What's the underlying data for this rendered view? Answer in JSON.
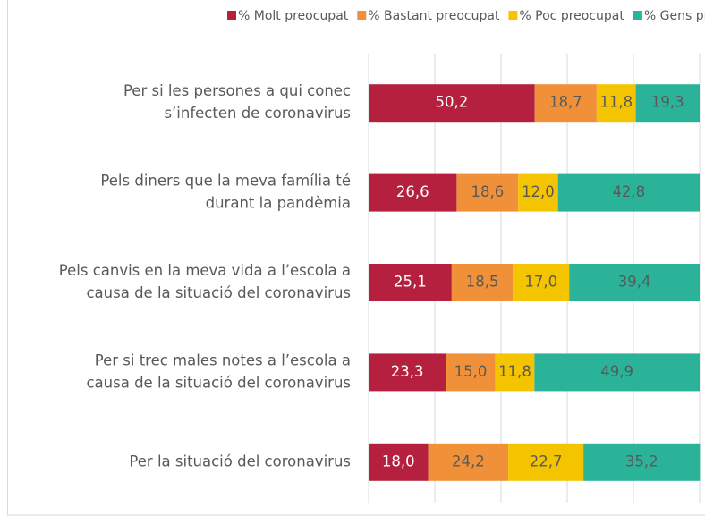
{
  "chart_data": {
    "type": "stacked-barh",
    "categories": [
      [
        "Per si les persones a qui conec",
        "s’infecten de coronavirus"
      ],
      [
        "Pels diners que la meva família té",
        "durant la pandèmia"
      ],
      [
        "Pels canvis en la meva vida a l’escola a",
        "causa de la situació del coronavirus"
      ],
      [
        "Per si trec males notes a l’escola a",
        "causa de la situació del coronavirus"
      ],
      [
        "Per la situació del coronavirus"
      ]
    ],
    "series": [
      {
        "name": "% Molt preocupat",
        "color": "#b5203f",
        "label_color": "#ffffff",
        "values": [
          50.2,
          26.6,
          25.1,
          23.3,
          18.0
        ],
        "value_labels": [
          "50,2",
          "26,6",
          "25,1",
          "23,3",
          "18,0"
        ]
      },
      {
        "name": "% Bastant preocupat",
        "color": "#f0913a",
        "label_color": "#595959",
        "values": [
          18.7,
          18.6,
          18.5,
          15.0,
          24.2
        ],
        "value_labels": [
          "18,7",
          "18,6",
          "18,5",
          "15,0",
          "24,2"
        ]
      },
      {
        "name": "% Poc preocupat",
        "color": "#f5c400",
        "label_color": "#595959",
        "values": [
          11.8,
          12.0,
          17.0,
          11.8,
          22.7
        ],
        "value_labels": [
          "11,8",
          "12,0",
          "17,0",
          "11,8",
          "22,7"
        ]
      },
      {
        "name": "% Gens preocupat",
        "color": "#2bb39a",
        "label_color": "#595959",
        "values": [
          19.3,
          42.8,
          39.4,
          49.9,
          35.2
        ],
        "value_labels": [
          "19,3",
          "42,8",
          "39,4",
          "49,9",
          "35,2"
        ]
      }
    ],
    "xlim": [
      0,
      100
    ],
    "xticks": [
      0,
      20,
      40,
      60,
      80,
      100
    ],
    "grid": true,
    "legend": "top"
  }
}
